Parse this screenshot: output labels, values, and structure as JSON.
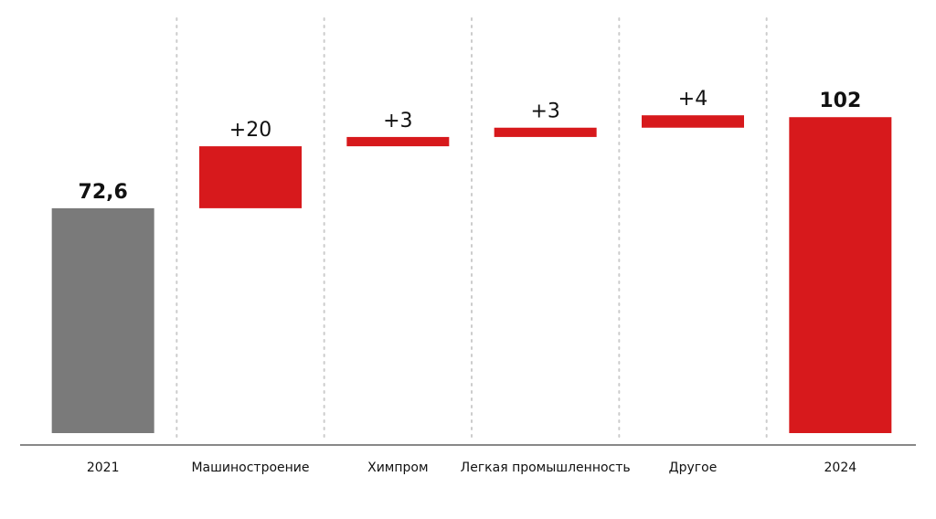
{
  "chart_data": {
    "type": "bar",
    "subtype": "waterfall",
    "categories": [
      "2021",
      "Машиностроение",
      "Химпром",
      "Легкая промышленность",
      "Другое",
      "2024"
    ],
    "values": [
      72.6,
      20,
      3,
      3,
      4,
      102
    ],
    "bar_kinds": [
      "total",
      "delta",
      "delta",
      "delta",
      "delta",
      "total"
    ],
    "data_labels": [
      "72,6",
      "+20",
      "+3",
      "+3",
      "+4",
      "102"
    ],
    "bold_labels": [
      true,
      false,
      false,
      false,
      false,
      true
    ],
    "title": "",
    "xlabel": "",
    "ylabel": "",
    "ylim": [
      0,
      108
    ],
    "grid": false,
    "separators": "dotted-vertical",
    "colors": {
      "total_start": "#7a7a7a",
      "increase": "#d7191c",
      "total_end": "#d7191c",
      "axis": "#888888",
      "separator": "#cccccc"
    }
  }
}
